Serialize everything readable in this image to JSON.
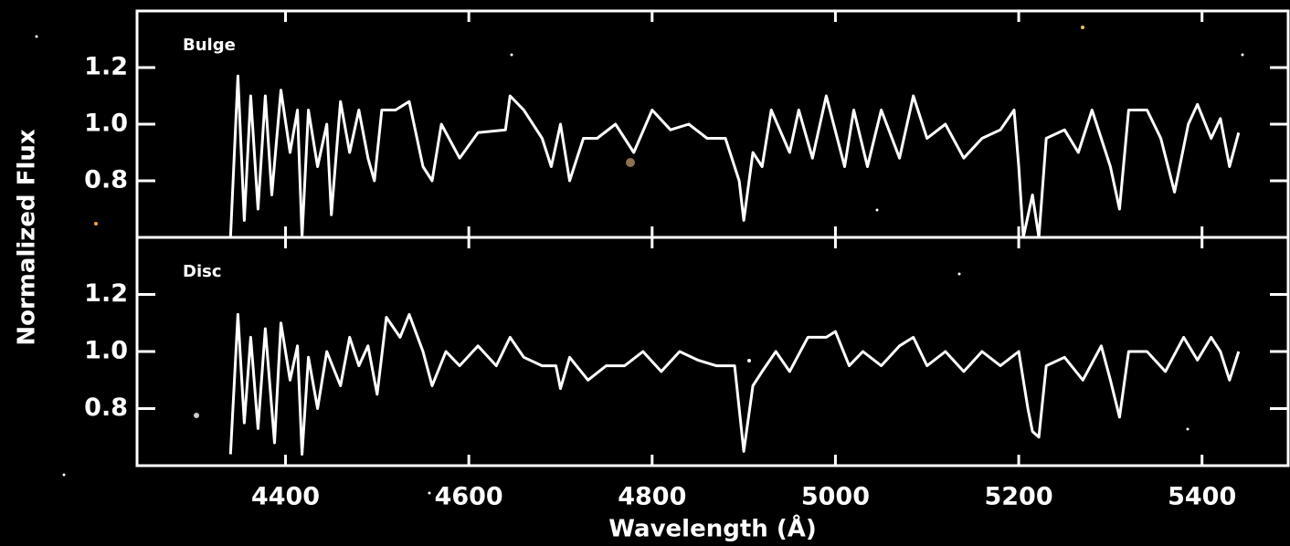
{
  "chart_data": [
    {
      "type": "line",
      "annotation": "Bulge",
      "ylabel": "Normalized Flux",
      "color": "#ffffff",
      "xlim": [
        4238,
        5494
      ],
      "ylim": [
        0.6,
        1.4
      ],
      "yticks": [
        0.8,
        {
          "value": 1,
          "label": "1.0"
        },
        1.2
      ],
      "x": [
        4340,
        4348,
        4355,
        4362,
        4370,
        4378,
        4385,
        4395,
        4405,
        4413,
        4418,
        4425,
        4435,
        4445,
        4450,
        4460,
        4470,
        4480,
        4490,
        4497,
        4505,
        4520,
        4535,
        4550,
        4560,
        4570,
        4590,
        4610,
        4640,
        4645,
        4660,
        4680,
        4690,
        4700,
        4710,
        4725,
        4740,
        4760,
        4780,
        4800,
        4820,
        4840,
        4860,
        4880,
        4895,
        4900,
        4910,
        4920,
        4930,
        4950,
        4960,
        4975,
        4990,
        5010,
        5020,
        5035,
        5050,
        5070,
        5085,
        5100,
        5120,
        5140,
        5160,
        5180,
        5195,
        5200,
        5205,
        5215,
        5222,
        5230,
        5250,
        5265,
        5280,
        5300,
        5310,
        5320,
        5340,
        5355,
        5370,
        5385,
        5395,
        5410,
        5420,
        5430,
        5440
      ],
      "values": [
        0.6,
        1.17,
        0.66,
        1.1,
        0.7,
        1.1,
        0.75,
        1.12,
        0.9,
        1.05,
        0.6,
        1.05,
        0.85,
        1.0,
        0.68,
        1.08,
        0.9,
        1.05,
        0.88,
        0.8,
        1.05,
        1.05,
        1.08,
        0.85,
        0.8,
        1.0,
        0.88,
        0.97,
        0.98,
        1.1,
        1.05,
        0.95,
        0.85,
        1.0,
        0.8,
        0.95,
        0.95,
        1.0,
        0.9,
        1.05,
        0.98,
        1.0,
        0.95,
        0.95,
        0.8,
        0.66,
        0.9,
        0.85,
        1.05,
        0.9,
        1.05,
        0.88,
        1.1,
        0.85,
        1.05,
        0.85,
        1.05,
        0.88,
        1.1,
        0.95,
        1.0,
        0.88,
        0.95,
        0.98,
        1.05,
        0.85,
        0.6,
        0.75,
        0.6,
        0.95,
        0.98,
        0.9,
        1.05,
        0.85,
        0.7,
        1.05,
        1.05,
        0.95,
        0.76,
        1.0,
        1.07,
        0.95,
        1.02,
        0.85,
        0.97
      ]
    },
    {
      "type": "line",
      "annotation": "Disc",
      "xlabel": "Wavelength (Å)",
      "color": "#ffffff",
      "xlim": [
        4238,
        5494
      ],
      "ylim": [
        0.6,
        1.4
      ],
      "xticks": [
        4400,
        4600,
        4800,
        5000,
        5200,
        5400
      ],
      "yticks": [
        0.8,
        {
          "value": 1,
          "label": "1.0"
        },
        1.2
      ],
      "x": [
        4340,
        4348,
        4355,
        4362,
        4370,
        4378,
        4388,
        4395,
        4405,
        4413,
        4418,
        4425,
        4435,
        4445,
        4460,
        4470,
        4480,
        4490,
        4500,
        4510,
        4525,
        4535,
        4550,
        4560,
        4575,
        4590,
        4610,
        4630,
        4645,
        4660,
        4680,
        4695,
        4700,
        4710,
        4730,
        4750,
        4770,
        4790,
        4810,
        4830,
        4850,
        4870,
        4890,
        4900,
        4910,
        4920,
        4935,
        4950,
        4970,
        4990,
        5000,
        5015,
        5030,
        5050,
        5070,
        5085,
        5100,
        5120,
        5140,
        5160,
        5180,
        5200,
        5210,
        5215,
        5222,
        5230,
        5250,
        5270,
        5290,
        5300,
        5310,
        5320,
        5340,
        5360,
        5380,
        5395,
        5410,
        5420,
        5430,
        5440
      ],
      "values": [
        0.64,
        1.13,
        0.75,
        1.05,
        0.73,
        1.08,
        0.68,
        1.1,
        0.9,
        1.02,
        0.64,
        0.98,
        0.8,
        1.0,
        0.88,
        1.05,
        0.95,
        1.02,
        0.85,
        1.12,
        1.05,
        1.13,
        1.0,
        0.88,
        1.0,
        0.95,
        1.02,
        0.95,
        1.05,
        0.98,
        0.95,
        0.95,
        0.87,
        0.98,
        0.9,
        0.95,
        0.95,
        1.0,
        0.93,
        1.0,
        0.97,
        0.95,
        0.95,
        0.65,
        0.88,
        0.93,
        1.0,
        0.93,
        1.05,
        1.05,
        1.07,
        0.95,
        1.0,
        0.95,
        1.02,
        1.05,
        0.95,
        1.0,
        0.93,
        1.0,
        0.95,
        1.0,
        0.8,
        0.72,
        0.7,
        0.95,
        0.98,
        0.9,
        1.02,
        0.9,
        0.77,
        1.0,
        1.0,
        0.93,
        1.05,
        0.97,
        1.05,
        1.0,
        0.9,
        1.0
      ]
    }
  ]
}
